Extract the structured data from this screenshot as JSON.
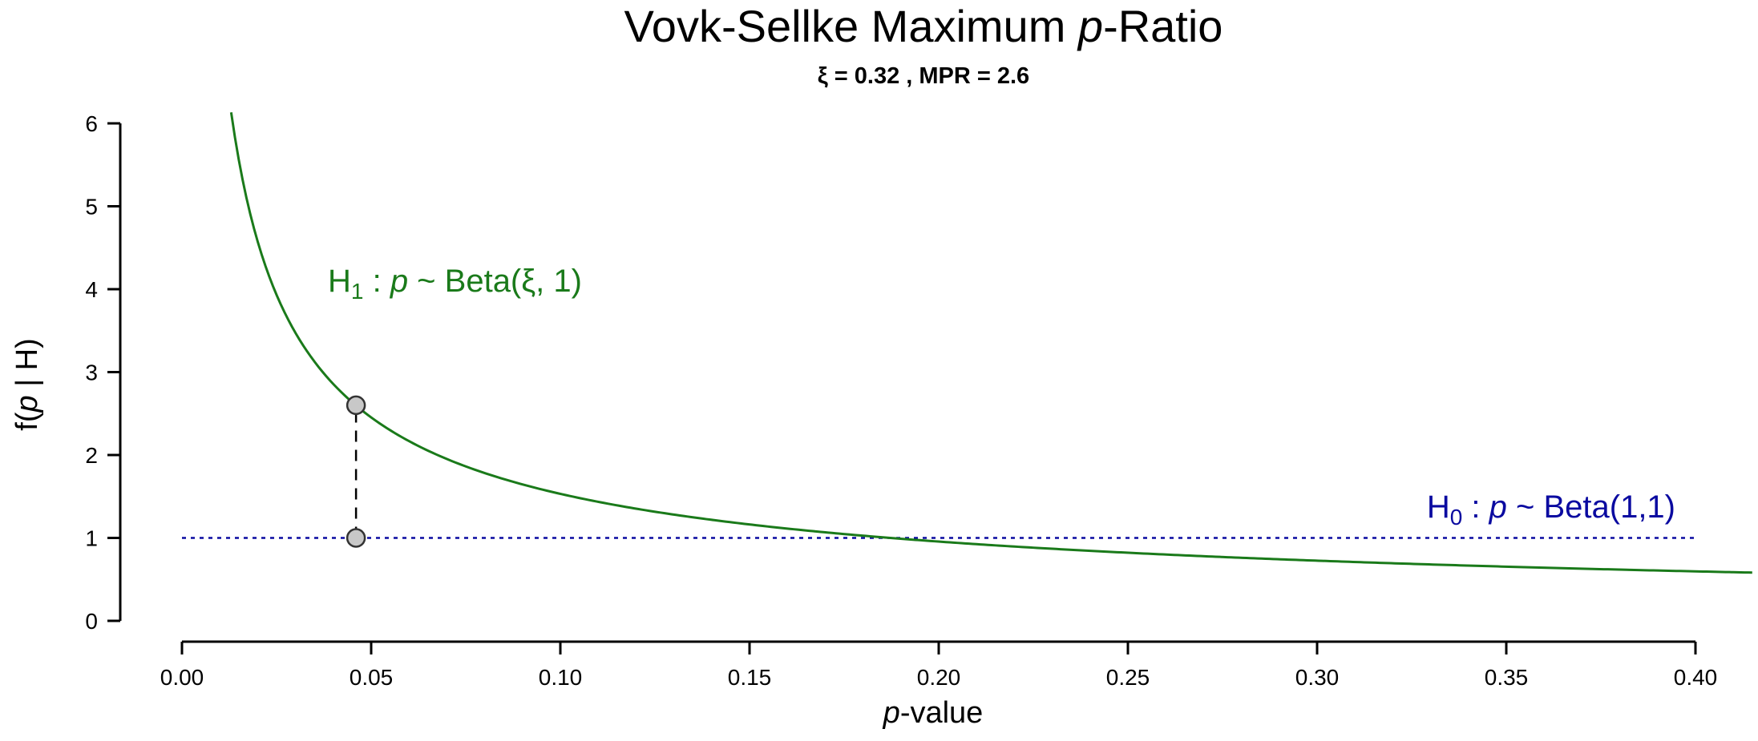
{
  "chart_data": {
    "type": "line",
    "title_main": "Vovk-Sellke Maximum ",
    "title_italic": "p",
    "title_tail": "-Ratio",
    "subtitle": "ξ = 0.32 , MPR =  2.6",
    "xlabel_italic": "p",
    "xlabel_tail": "-value",
    "ylabel_pre": "f(",
    "ylabel_italic": "p",
    "ylabel_post": " | H)",
    "xlim": [
      0.0,
      0.4
    ],
    "ylim": [
      0,
      6
    ],
    "xticks": [
      0.0,
      0.05,
      0.1,
      0.15,
      0.2,
      0.25,
      0.3,
      0.35,
      0.4
    ],
    "xtick_labels": [
      "0.00",
      "0.05",
      "0.10",
      "0.15",
      "0.20",
      "0.25",
      "0.30",
      "0.35",
      "0.40"
    ],
    "yticks": [
      0,
      1,
      2,
      3,
      4,
      5,
      6
    ],
    "ytick_labels": [
      "0",
      "1",
      "2",
      "3",
      "4",
      "5",
      "6"
    ],
    "series": [
      {
        "name": "H1",
        "label_base": "H",
        "label_sub": "1",
        "label_sep": " : ",
        "label_italic": "p",
        "label_tail": " ~ Beta(ξ, 1)",
        "distribution": "Beta(0.32, 1)",
        "xi": 0.32,
        "x_range": [
          0.013,
          0.415
        ],
        "color": "#1a7a1a"
      },
      {
        "name": "H0",
        "label_base": "H",
        "label_sub": "0",
        "label_sep": " : ",
        "label_italic": "p",
        "label_tail": " ~ Beta(1,1)",
        "distribution": "Beta(1,1)",
        "value": 1,
        "x_range": [
          0.0,
          0.4
        ],
        "color": "#0a0aa0"
      }
    ],
    "points": [
      {
        "name": "h1-density-point",
        "x": 0.046,
        "y": 2.6
      },
      {
        "name": "h0-density-point",
        "x": 0.046,
        "y": 1.0
      }
    ],
    "connector": {
      "x": 0.046,
      "y_from": 1.0,
      "y_to": 2.6
    },
    "point_fill": "#c8c8c8",
    "axis_color": "#000000"
  }
}
